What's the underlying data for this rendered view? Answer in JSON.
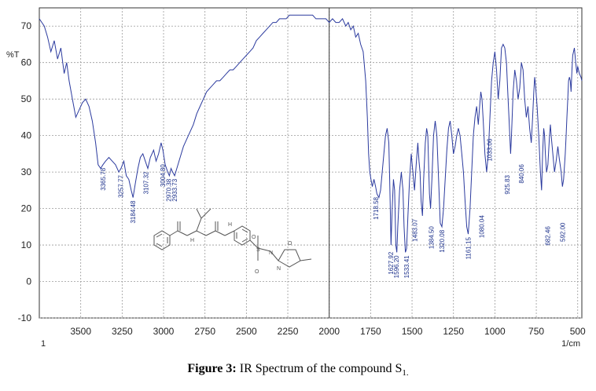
{
  "chart_data": {
    "type": "line",
    "ylabel": "%T",
    "xlabel": "1/cm",
    "xlim": [
      3750,
      475
    ],
    "ylim": [
      -10,
      75
    ],
    "x_reversed": true,
    "grid": true,
    "xticks": [
      3500,
      3250,
      3000,
      2750,
      2500,
      2250,
      2000,
      1750,
      1500,
      1250,
      1000,
      750,
      500
    ],
    "yticks": [
      70,
      60,
      50,
      40,
      30,
      20,
      10,
      0,
      -10
    ],
    "bottom_left_note": "1",
    "marker_line_x": 2000,
    "series": [
      {
        "color": "#2b3a9e",
        "points": [
          [
            3750,
            72
          ],
          [
            3720,
            70
          ],
          [
            3700,
            67
          ],
          [
            3680,
            63
          ],
          [
            3660,
            66
          ],
          [
            3640,
            61
          ],
          [
            3620,
            64
          ],
          [
            3600,
            57
          ],
          [
            3585,
            60
          ],
          [
            3570,
            55
          ],
          [
            3550,
            50
          ],
          [
            3530,
            45
          ],
          [
            3510,
            47
          ],
          [
            3490,
            49
          ],
          [
            3470,
            50
          ],
          [
            3450,
            48
          ],
          [
            3430,
            44
          ],
          [
            3410,
            38
          ],
          [
            3395,
            32
          ],
          [
            3380,
            31
          ],
          [
            3366,
            32
          ],
          [
            3350,
            33
          ],
          [
            3330,
            34
          ],
          [
            3310,
            33
          ],
          [
            3290,
            32
          ],
          [
            3270,
            30
          ],
          [
            3257,
            31
          ],
          [
            3240,
            33
          ],
          [
            3225,
            29
          ],
          [
            3210,
            28
          ],
          [
            3195,
            25
          ],
          [
            3184,
            23
          ],
          [
            3170,
            27
          ],
          [
            3155,
            31
          ],
          [
            3140,
            34
          ],
          [
            3125,
            35
          ],
          [
            3110,
            33
          ],
          [
            3095,
            31
          ],
          [
            3080,
            34
          ],
          [
            3060,
            36
          ],
          [
            3045,
            33
          ],
          [
            3030,
            35
          ],
          [
            3015,
            38
          ],
          [
            3004,
            36
          ],
          [
            2990,
            32
          ],
          [
            2975,
            30
          ],
          [
            2965,
            29
          ],
          [
            2955,
            31
          ],
          [
            2945,
            30
          ],
          [
            2933,
            29
          ],
          [
            2920,
            31
          ],
          [
            2900,
            34
          ],
          [
            2880,
            37
          ],
          [
            2850,
            40
          ],
          [
            2820,
            43
          ],
          [
            2800,
            46
          ],
          [
            2780,
            48
          ],
          [
            2760,
            50
          ],
          [
            2740,
            52
          ],
          [
            2720,
            53
          ],
          [
            2700,
            54
          ],
          [
            2680,
            55
          ],
          [
            2660,
            55
          ],
          [
            2640,
            56
          ],
          [
            2620,
            57
          ],
          [
            2600,
            58
          ],
          [
            2580,
            58
          ],
          [
            2560,
            59
          ],
          [
            2540,
            60
          ],
          [
            2520,
            61
          ],
          [
            2500,
            62
          ],
          [
            2480,
            63
          ],
          [
            2460,
            64
          ],
          [
            2440,
            66
          ],
          [
            2420,
            67
          ],
          [
            2400,
            68
          ],
          [
            2380,
            69
          ],
          [
            2360,
            70
          ],
          [
            2340,
            71
          ],
          [
            2320,
            71
          ],
          [
            2300,
            72
          ],
          [
            2280,
            72
          ],
          [
            2260,
            72
          ],
          [
            2240,
            73
          ],
          [
            2220,
            73
          ],
          [
            2200,
            73
          ],
          [
            2180,
            73
          ],
          [
            2160,
            73
          ],
          [
            2140,
            73
          ],
          [
            2120,
            73
          ],
          [
            2100,
            73
          ],
          [
            2080,
            72
          ],
          [
            2060,
            72
          ],
          [
            2040,
            72
          ],
          [
            2020,
            72
          ],
          [
            2000,
            71
          ],
          [
            1980,
            72
          ],
          [
            1960,
            71
          ],
          [
            1940,
            71
          ],
          [
            1920,
            72
          ],
          [
            1900,
            70
          ],
          [
            1885,
            71
          ],
          [
            1870,
            69
          ],
          [
            1855,
            70
          ],
          [
            1840,
            67
          ],
          [
            1825,
            68
          ],
          [
            1810,
            65
          ],
          [
            1795,
            63
          ],
          [
            1780,
            55
          ],
          [
            1770,
            45
          ],
          [
            1762,
            35
          ],
          [
            1755,
            30
          ],
          [
            1748,
            28
          ],
          [
            1740,
            26
          ],
          [
            1730,
            28
          ],
          [
            1720,
            26
          ],
          [
            1712,
            24
          ],
          [
            1700,
            23
          ],
          [
            1690,
            25
          ],
          [
            1680,
            30
          ],
          [
            1670,
            35
          ],
          [
            1660,
            40
          ],
          [
            1650,
            42
          ],
          [
            1640,
            38
          ],
          [
            1635,
            28
          ],
          [
            1627,
            10
          ],
          [
            1620,
            20
          ],
          [
            1612,
            28
          ],
          [
            1605,
            25
          ],
          [
            1598,
            10
          ],
          [
            1592,
            8
          ],
          [
            1586,
            15
          ],
          [
            1575,
            25
          ],
          [
            1565,
            30
          ],
          [
            1555,
            25
          ],
          [
            1548,
            15
          ],
          [
            1540,
            8
          ],
          [
            1533,
            9
          ],
          [
            1525,
            18
          ],
          [
            1515,
            28
          ],
          [
            1505,
            35
          ],
          [
            1495,
            30
          ],
          [
            1485,
            25
          ],
          [
            1475,
            32
          ],
          [
            1465,
            38
          ],
          [
            1458,
            33
          ],
          [
            1452,
            30
          ],
          [
            1445,
            22
          ],
          [
            1437,
            18
          ],
          [
            1430,
            28
          ],
          [
            1420,
            38
          ],
          [
            1412,
            42
          ],
          [
            1405,
            40
          ],
          [
            1400,
            32
          ],
          [
            1395,
            24
          ],
          [
            1388,
            20
          ],
          [
            1380,
            28
          ],
          [
            1370,
            40
          ],
          [
            1360,
            44
          ],
          [
            1350,
            40
          ],
          [
            1340,
            28
          ],
          [
            1330,
            16
          ],
          [
            1320,
            15
          ],
          [
            1310,
            20
          ],
          [
            1300,
            28
          ],
          [
            1290,
            36
          ],
          [
            1280,
            42
          ],
          [
            1270,
            44
          ],
          [
            1260,
            40
          ],
          [
            1250,
            35
          ],
          [
            1240,
            37
          ],
          [
            1230,
            40
          ],
          [
            1220,
            42
          ],
          [
            1210,
            40
          ],
          [
            1200,
            35
          ],
          [
            1190,
            30
          ],
          [
            1180,
            22
          ],
          [
            1170,
            15
          ],
          [
            1161,
            13
          ],
          [
            1150,
            20
          ],
          [
            1140,
            30
          ],
          [
            1130,
            40
          ],
          [
            1120,
            45
          ],
          [
            1110,
            48
          ],
          [
            1100,
            43
          ],
          [
            1092,
            48
          ],
          [
            1085,
            52
          ],
          [
            1078,
            50
          ],
          [
            1070,
            44
          ],
          [
            1060,
            35
          ],
          [
            1050,
            30
          ],
          [
            1040,
            35
          ],
          [
            1030,
            45
          ],
          [
            1020,
            55
          ],
          [
            1010,
            60
          ],
          [
            1000,
            63
          ],
          [
            990,
            58
          ],
          [
            980,
            50
          ],
          [
            970,
            55
          ],
          [
            960,
            64
          ],
          [
            950,
            65
          ],
          [
            940,
            64
          ],
          [
            930,
            60
          ],
          [
            920,
            50
          ],
          [
            915,
            45
          ],
          [
            905,
            35
          ],
          [
            900,
            40
          ],
          [
            890,
            52
          ],
          [
            880,
            58
          ],
          [
            870,
            55
          ],
          [
            860,
            50
          ],
          [
            850,
            53
          ],
          [
            840,
            60
          ],
          [
            830,
            58
          ],
          [
            820,
            50
          ],
          [
            810,
            45
          ],
          [
            800,
            48
          ],
          [
            790,
            42
          ],
          [
            780,
            38
          ],
          [
            772,
            45
          ],
          [
            765,
            52
          ],
          [
            760,
            56
          ],
          [
            755,
            54
          ],
          [
            745,
            48
          ],
          [
            735,
            40
          ],
          [
            725,
            30
          ],
          [
            718,
            25
          ],
          [
            712,
            35
          ],
          [
            705,
            42
          ],
          [
            700,
            40
          ],
          [
            695,
            35
          ],
          [
            688,
            30
          ],
          [
            680,
            32
          ],
          [
            670,
            40
          ],
          [
            665,
            43
          ],
          [
            660,
            40
          ],
          [
            650,
            35
          ],
          [
            640,
            30
          ],
          [
            630,
            33
          ],
          [
            620,
            37
          ],
          [
            612,
            34
          ],
          [
            600,
            30
          ],
          [
            592,
            26
          ],
          [
            585,
            28
          ],
          [
            575,
            35
          ],
          [
            570,
            40
          ],
          [
            565,
            45
          ],
          [
            560,
            50
          ],
          [
            555,
            55
          ],
          [
            550,
            56
          ],
          [
            545,
            55
          ],
          [
            540,
            52
          ],
          [
            535,
            58
          ],
          [
            530,
            62
          ],
          [
            520,
            64
          ],
          [
            512,
            60
          ],
          [
            505,
            57
          ],
          [
            500,
            59
          ],
          [
            490,
            57
          ],
          [
            480,
            56
          ],
          [
            475,
            55
          ]
        ]
      }
    ],
    "peak_labels": [
      {
        "x": 3365.78,
        "y": 32,
        "text": "3365.78"
      },
      {
        "x": 3257.77,
        "y": 30,
        "text": "3257.77"
      },
      {
        "x": 3184.48,
        "y": 23,
        "text": "3184.48"
      },
      {
        "x": 3107.32,
        "y": 31,
        "text": "3107.32"
      },
      {
        "x": 3004.8,
        "y": 33,
        "text": "3004.80"
      },
      {
        "x": 2970.38,
        "y": 29,
        "text": "2970.38"
      },
      {
        "x": 2933.73,
        "y": 29,
        "text": "2933.73"
      },
      {
        "x": 1718.58,
        "y": 24,
        "text": "1718.58"
      },
      {
        "x": 1627.92,
        "y": 9,
        "text": "1627.92"
      },
      {
        "x": 1596.2,
        "y": 8,
        "text": "1596.20"
      },
      {
        "x": 1533.41,
        "y": 8,
        "text": "1533.41"
      },
      {
        "x": 1483.07,
        "y": 18,
        "text": "1483.07"
      },
      {
        "x": 1384.5,
        "y": 16,
        "text": "1384.50"
      },
      {
        "x": 1320.08,
        "y": 15,
        "text": "1320.08"
      },
      {
        "x": 1161.15,
        "y": 13,
        "text": "1161.15"
      },
      {
        "x": 1080.04,
        "y": 19,
        "text": "1080.04"
      },
      {
        "x": 1033.06,
        "y": 40,
        "text": "1033.06"
      },
      {
        "x": 925.83,
        "y": 30,
        "text": "925.83"
      },
      {
        "x": 840.06,
        "y": 33,
        "text": "840.06"
      },
      {
        "x": 682.46,
        "y": 16,
        "text": "682.46"
      },
      {
        "x": 592.0,
        "y": 17,
        "text": "592.00"
      }
    ]
  },
  "caption": {
    "bold": "Figure 3:",
    "text": " IR Spectrum of the compound S",
    "subscript": "1."
  }
}
